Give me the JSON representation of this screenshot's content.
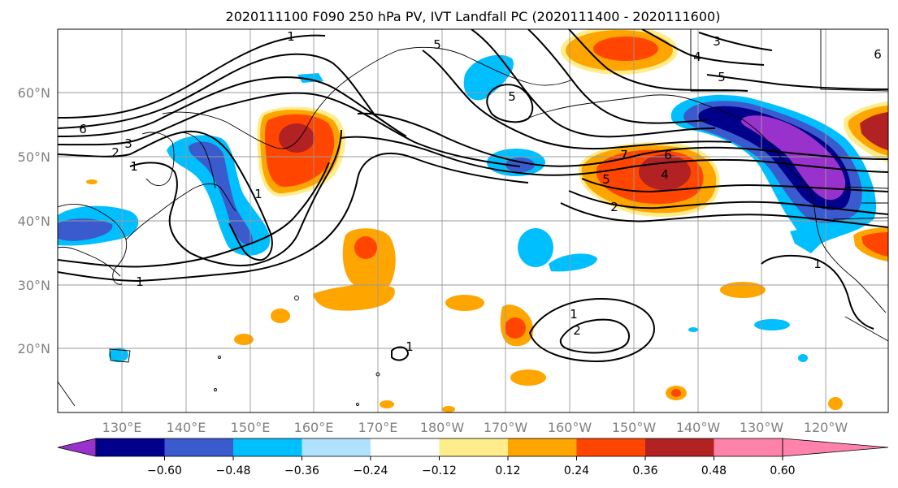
{
  "title": "2020111100 F090 250 hPa PV, IVT Landfall PC (2020111400 - 2020111600)",
  "lat_labels": [
    "60°N",
    "50°N",
    "40°N",
    "30°N",
    "20°N"
  ],
  "lon_labels": [
    "130°E",
    "140°E",
    "150°E",
    "160°E",
    "170°E",
    "180°W",
    "170°W",
    "160°W",
    "150°W",
    "140°W",
    "130°W",
    "120°W"
  ],
  "colorbar": {
    "ticks": [
      "−0.60",
      "−0.48",
      "−0.36",
      "−0.24",
      "−0.12",
      "0.12",
      "0.24",
      "0.36",
      "0.48",
      "0.60"
    ],
    "colors": [
      "#9932cc",
      "#00008b",
      "#3a5bcd",
      "#00bfff",
      "#b0e2ff",
      "#ffffff",
      "#ffec8b",
      "#ffa500",
      "#ff4500",
      "#b22222",
      "#ff82ab"
    ]
  },
  "contour_labels": [
    "1",
    "5",
    "3",
    "4",
    "5",
    "6",
    "6",
    "3",
    "2",
    "1",
    "1",
    "5",
    "7",
    "6",
    "5",
    "4",
    "2",
    "1",
    "1",
    "1",
    "2",
    "1"
  ]
}
